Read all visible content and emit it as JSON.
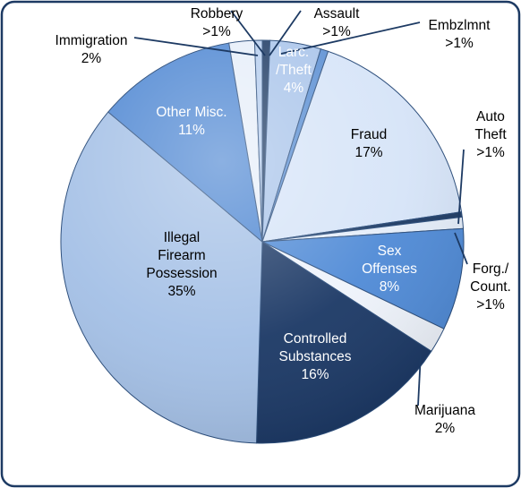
{
  "chart_data": {
    "type": "pie",
    "title": "",
    "slices": [
      {
        "label": "Assault",
        "pct_label": ">1%",
        "value": 0.6,
        "color": "#1d3a63",
        "label_color": "#000000"
      },
      {
        "label": "Larc. /Theft",
        "pct_label": "4%",
        "value": 4,
        "color": "#a9c4ea",
        "label_color": "#ffffff"
      },
      {
        "label": "Embzlmnt",
        "pct_label": ">1%",
        "value": 0.6,
        "color": "#5b8fd3",
        "label_color": "#000000"
      },
      {
        "label": "Fraud",
        "pct_label": "17%",
        "value": 17,
        "color": "#d6e4f8",
        "label_color": "#000000"
      },
      {
        "label": "Auto Theft",
        "pct_label": ">1%",
        "value": 0.4,
        "color": "#1d3a63",
        "label_color": "#000000"
      },
      {
        "label": "Forg./ Count.",
        "pct_label": ">1%",
        "value": 0.9,
        "color": "#e4edf9",
        "label_color": "#000000"
      },
      {
        "label": "Sex Offenses",
        "pct_label": "8%",
        "value": 8,
        "color": "#4f8ad6",
        "label_color": "#ffffff"
      },
      {
        "label": "Marijuana",
        "pct_label": "2%",
        "value": 2,
        "color": "#eef3fb",
        "label_color": "#000000"
      },
      {
        "label": "Controlled Substances",
        "pct_label": "16%",
        "value": 16,
        "color": "#1b3865",
        "label_color": "#ffffff"
      },
      {
        "label": "Illegal Firearm Possession",
        "pct_label": "35%",
        "value": 35,
        "color": "#a4c0e6",
        "label_color": "#000000"
      },
      {
        "label": "Other Misc.",
        "pct_label": "11%",
        "value": 11,
        "color": "#4d86d2",
        "label_color": "#ffffff"
      },
      {
        "label": "Immigration",
        "pct_label": "2%",
        "value": 2,
        "color": "#e6eef9",
        "label_color": "#000000"
      },
      {
        "label": "Robbery",
        "pct_label": ">1%",
        "value": 0.6,
        "color": "#b5cdee",
        "label_color": "#000000"
      }
    ]
  }
}
